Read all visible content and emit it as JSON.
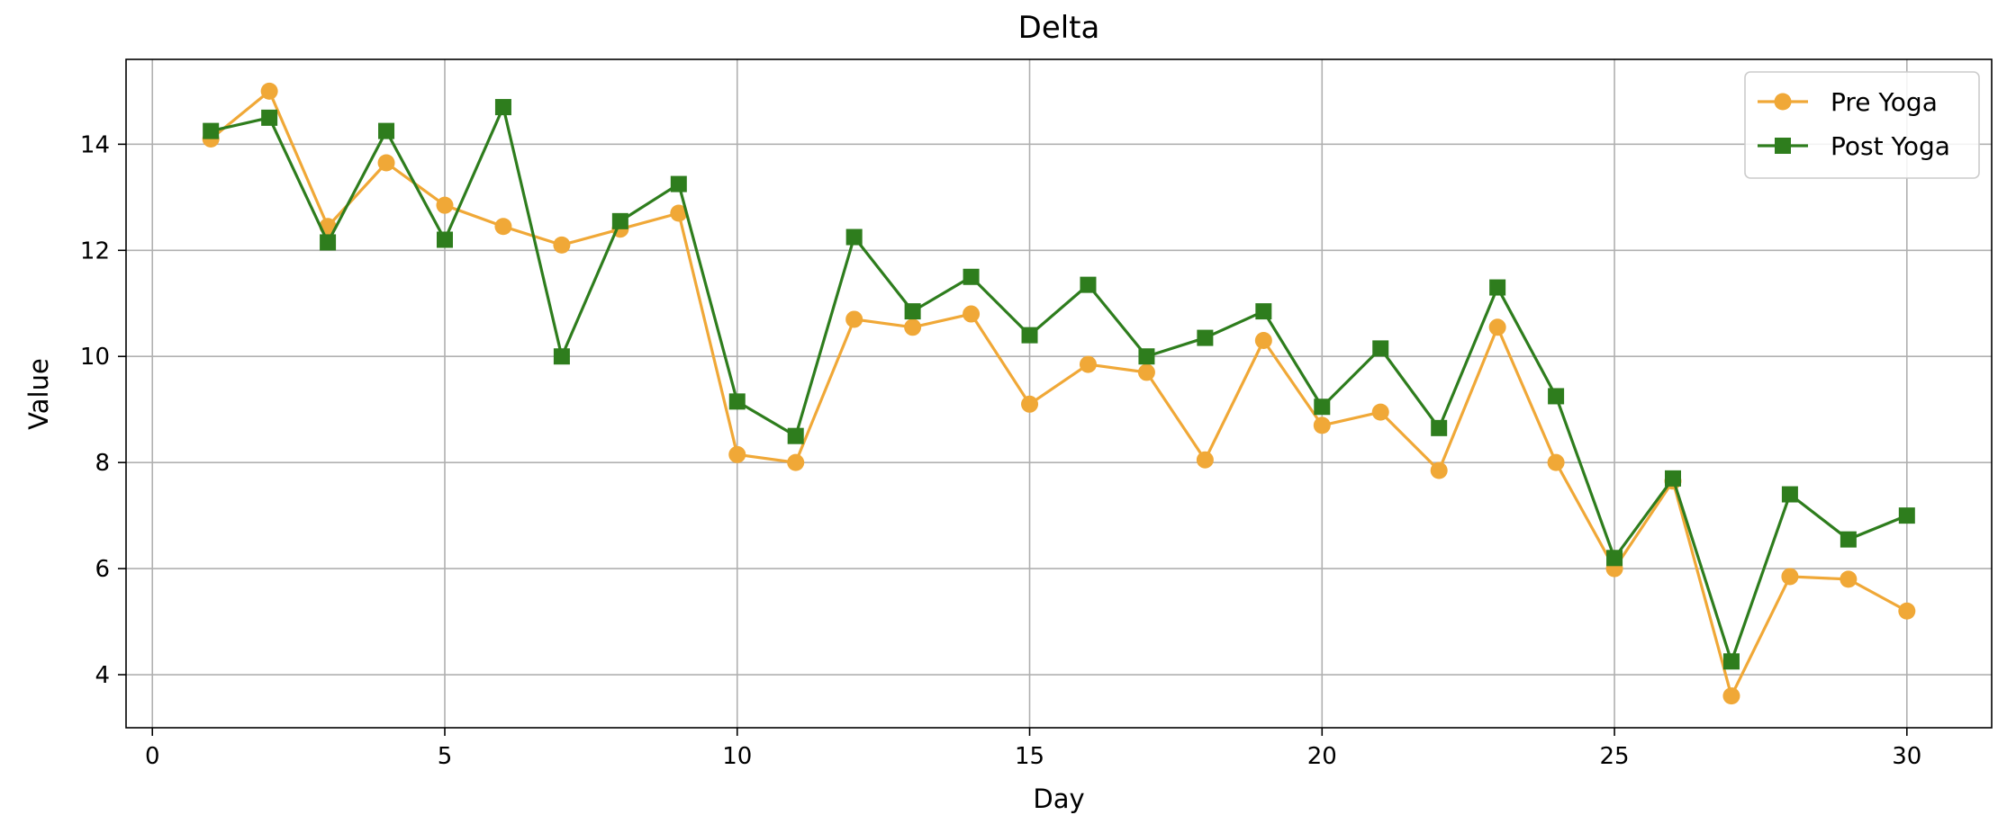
{
  "chart_data": {
    "type": "line",
    "title": "Delta",
    "xlabel": "Day",
    "ylabel": "Value",
    "xlim": [
      -0.45,
      31.45
    ],
    "ylim": [
      3.0,
      15.6
    ],
    "xticks": [
      0,
      5,
      10,
      15,
      20,
      25,
      30
    ],
    "yticks": [
      4,
      6,
      8,
      10,
      12,
      14
    ],
    "grid": true,
    "legend_position": "top-right",
    "x": [
      1,
      2,
      3,
      4,
      5,
      6,
      7,
      8,
      9,
      10,
      11,
      12,
      13,
      14,
      15,
      16,
      17,
      18,
      19,
      20,
      21,
      22,
      23,
      24,
      25,
      26,
      27,
      28,
      29,
      30
    ],
    "series": [
      {
        "name": "Pre Yoga",
        "color": "#f0a837",
        "marker": "circle",
        "values": [
          14.1,
          15.0,
          12.45,
          13.65,
          12.85,
          12.45,
          12.1,
          12.4,
          12.7,
          8.15,
          8.0,
          10.7,
          10.55,
          10.8,
          9.1,
          9.85,
          9.7,
          8.05,
          10.3,
          8.7,
          8.95,
          7.85,
          10.55,
          8.0,
          6.0,
          7.65,
          3.6,
          5.85,
          5.8,
          5.2
        ]
      },
      {
        "name": "Post Yoga",
        "color": "#2e7d1d",
        "marker": "square",
        "values": [
          14.25,
          14.5,
          12.15,
          14.25,
          12.2,
          14.7,
          10.0,
          12.55,
          13.25,
          9.15,
          8.5,
          12.25,
          10.85,
          11.5,
          10.4,
          11.35,
          10.0,
          10.35,
          10.85,
          9.05,
          10.15,
          8.65,
          11.3,
          9.25,
          6.2,
          7.7,
          4.25,
          7.4,
          6.55,
          7.0
        ]
      }
    ]
  }
}
